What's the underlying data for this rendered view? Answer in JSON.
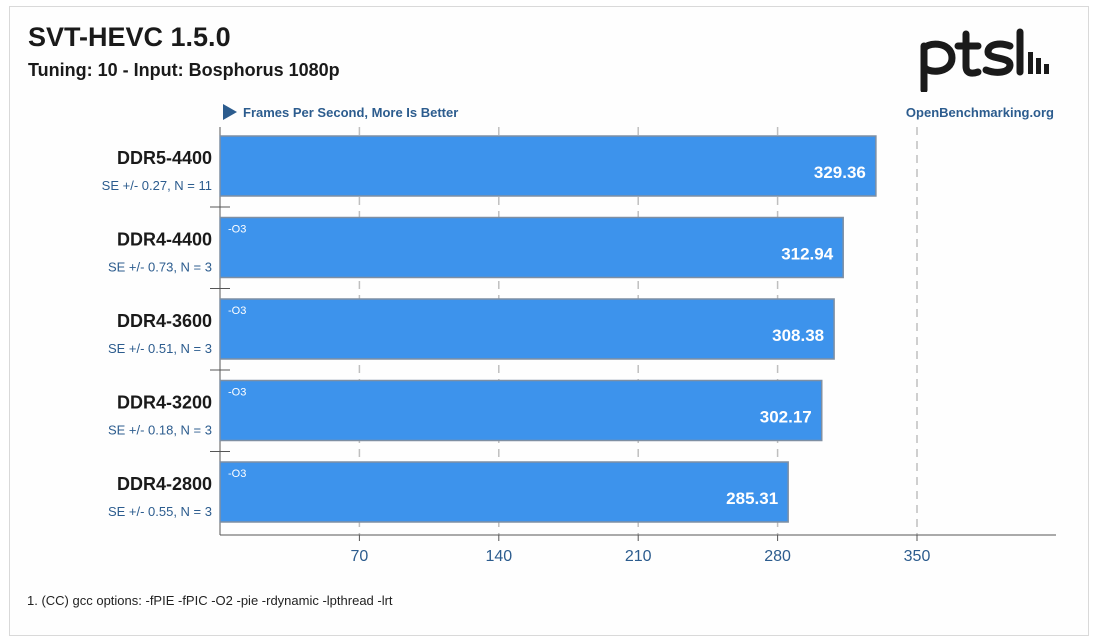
{
  "header": {
    "title": "SVT-HEVC 1.5.0",
    "subtitle": "Tuning: 10 - Input: Bosphorus 1080p"
  },
  "footnote": "1. (CC) gcc options: -fPIE -fPIC -O2 -pie -rdynamic -lpthread -lrt",
  "colors": {
    "bar_fill": "#3d93ec",
    "bar_border": "#7e8fa3",
    "label_blue": "#2c5c8e",
    "grid": "#bfbfbf",
    "axis": "#555555"
  },
  "chart_data": {
    "type": "bar",
    "orientation": "horizontal",
    "metric_label": "Frames Per Second, More Is Better",
    "source_label": "OpenBenchmarking.org",
    "categories": [
      "DDR5-4400",
      "DDR4-4400",
      "DDR4-3600",
      "DDR4-3200",
      "DDR4-2800"
    ],
    "values": [
      329.36,
      312.94,
      308.38,
      302.17,
      285.31
    ],
    "value_labels": [
      "329.36",
      "312.94",
      "308.38",
      "302.17",
      "285.31"
    ],
    "se_labels": [
      "SE +/- 0.27, N = 11",
      "SE +/- 0.73, N = 3",
      "SE +/- 0.51, N = 3",
      "SE +/- 0.18, N = 3",
      "SE +/- 0.55, N = 3"
    ],
    "bar_notes": [
      "",
      "-O3",
      "-O3",
      "-O3",
      "-O3"
    ],
    "x_ticks": [
      70,
      140,
      210,
      280,
      350
    ],
    "xlim": [
      0,
      425
    ],
    "grid": true
  }
}
